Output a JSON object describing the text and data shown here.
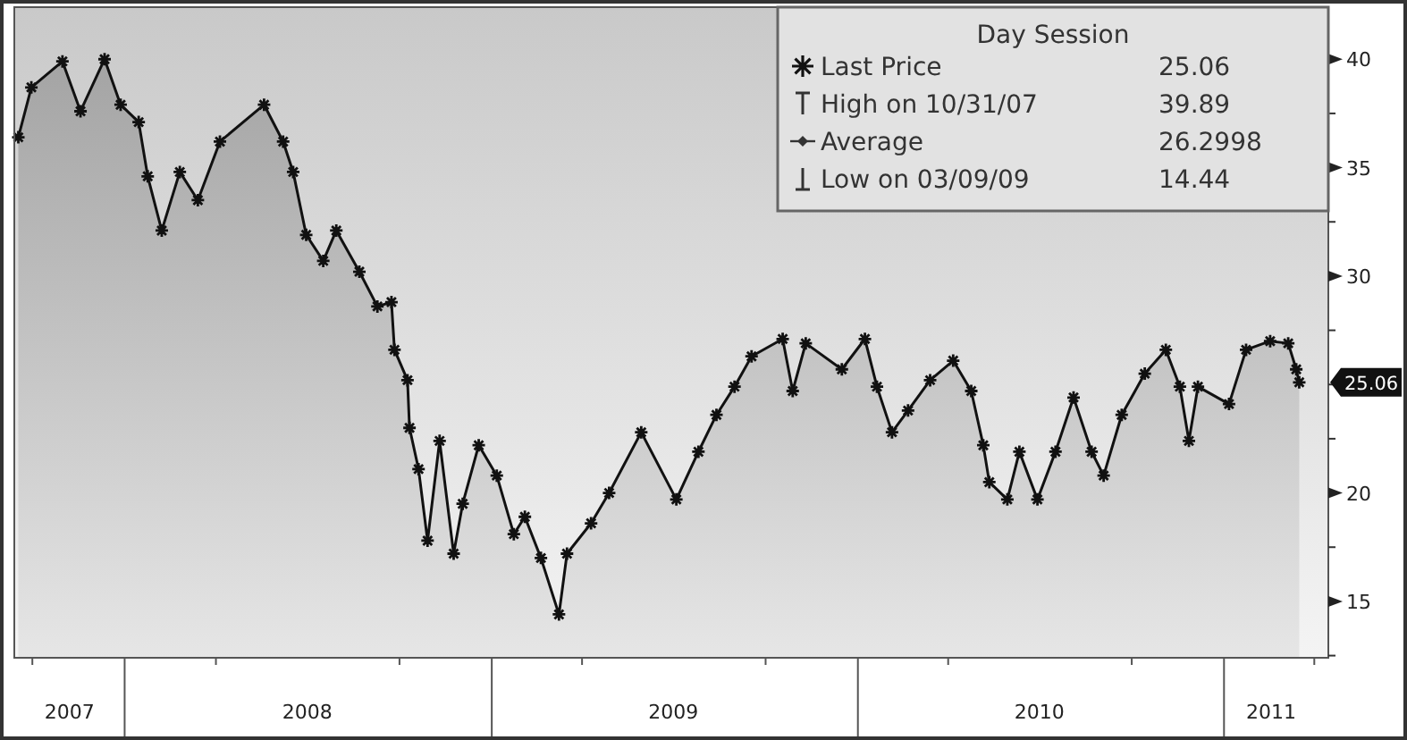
{
  "chart_data": {
    "type": "area",
    "legend_title": "Day Session",
    "legend": "top right",
    "marker": "cross",
    "x": [
      "2007-09-17",
      "2007-09-30",
      "2007-10-31",
      "2007-11-18",
      "2007-12-12",
      "2007-12-28",
      "2008-01-15",
      "2008-01-24",
      "2008-02-07",
      "2008-02-25",
      "2008-03-14",
      "2008-04-05",
      "2008-05-19",
      "2008-06-07",
      "2008-06-17",
      "2008-06-30",
      "2008-07-17",
      "2008-07-30",
      "2008-08-22",
      "2008-09-09",
      "2008-09-23",
      "2008-09-26",
      "2008-10-09",
      "2008-10-11",
      "2008-10-20",
      "2008-10-29",
      "2008-11-10",
      "2008-11-24",
      "2008-12-03",
      "2008-12-19",
      "2009-01-06",
      "2009-01-23",
      "2009-02-03",
      "2009-02-19",
      "2009-03-09",
      "2009-03-17",
      "2009-04-10",
      "2009-04-28",
      "2009-05-30",
      "2009-07-04",
      "2009-07-26",
      "2009-08-13",
      "2009-08-31",
      "2009-09-17",
      "2009-10-18",
      "2009-10-28",
      "2009-11-10",
      "2009-12-16",
      "2010-01-08",
      "2010-01-20",
      "2010-02-04",
      "2010-02-20",
      "2010-03-14",
      "2010-04-06",
      "2010-04-24",
      "2010-05-06",
      "2010-05-12",
      "2010-05-30",
      "2010-06-11",
      "2010-06-29",
      "2010-07-17",
      "2010-08-04",
      "2010-08-22",
      "2010-09-03",
      "2010-09-21",
      "2010-10-14",
      "2010-11-04",
      "2010-11-18",
      "2010-11-27",
      "2010-12-06",
      "2011-01-06",
      "2011-01-23",
      "2011-02-16",
      "2011-03-06",
      "2011-03-14",
      "2011-03-17"
    ],
    "series": [
      {
        "name": "Last Price",
        "color": "#111111",
        "values": [
          36.4,
          38.7,
          39.9,
          37.6,
          40.0,
          37.9,
          37.1,
          34.6,
          32.1,
          34.8,
          33.5,
          36.2,
          37.9,
          36.2,
          34.8,
          31.9,
          30.7,
          32.1,
          30.2,
          28.6,
          28.8,
          26.6,
          25.2,
          23.0,
          21.1,
          17.8,
          22.4,
          17.2,
          19.5,
          22.2,
          20.8,
          18.1,
          18.9,
          17.0,
          14.4,
          17.2,
          18.6,
          20.0,
          22.8,
          19.7,
          21.9,
          23.6,
          24.9,
          26.3,
          27.1,
          24.7,
          26.9,
          25.7,
          27.1,
          24.9,
          22.8,
          23.8,
          25.2,
          26.1,
          24.7,
          22.2,
          20.5,
          19.7,
          21.9,
          19.7,
          21.9,
          24.4,
          21.9,
          20.8,
          23.6,
          25.5,
          26.6,
          24.9,
          22.4,
          24.9,
          24.1,
          26.6,
          27.0,
          26.9,
          25.7,
          25.1
        ]
      }
    ],
    "xlim": [
      "2007-09-13",
      "2011-04-15"
    ],
    "xticks": [
      {
        "value": "2007-10-01",
        "label": null
      },
      {
        "value": "2007-11-07",
        "label": "2007"
      },
      {
        "value": "2008-01-01",
        "label": null
      },
      {
        "value": "2008-04-01",
        "label": null
      },
      {
        "value": "2008-07-01",
        "label": "2008"
      },
      {
        "value": "2008-10-01",
        "label": null
      },
      {
        "value": "2009-01-01",
        "label": null
      },
      {
        "value": "2009-04-01",
        "label": null
      },
      {
        "value": "2009-07-01",
        "label": "2009"
      },
      {
        "value": "2009-10-01",
        "label": null
      },
      {
        "value": "2010-01-01",
        "label": null
      },
      {
        "value": "2010-04-01",
        "label": null
      },
      {
        "value": "2010-07-01",
        "label": "2010"
      },
      {
        "value": "2010-10-01",
        "label": null
      },
      {
        "value": "2011-01-01",
        "label": null
      },
      {
        "value": "2011-02-17",
        "label": "2011"
      },
      {
        "value": "2011-04-01",
        "label": null
      }
    ],
    "ylim": [
      12.4,
      42.4
    ],
    "yticks": [
      {
        "value": 12.5,
        "label": null
      },
      15,
      {
        "value": 17.5,
        "label": null
      },
      20,
      {
        "value": 22.5,
        "label": null
      },
      {
        "value": 25,
        "label": null
      },
      {
        "value": 27.5,
        "label": null
      },
      30,
      {
        "value": 32.5,
        "label": null
      },
      35,
      {
        "value": 37.5,
        "label": null
      },
      40
    ],
    "annotations": [
      "25.06",
      "High on 10/31/07",
      "39.89",
      "Average",
      "26.2998",
      "Low on 03/09/09",
      "14.44",
      "25.06"
    ]
  }
}
